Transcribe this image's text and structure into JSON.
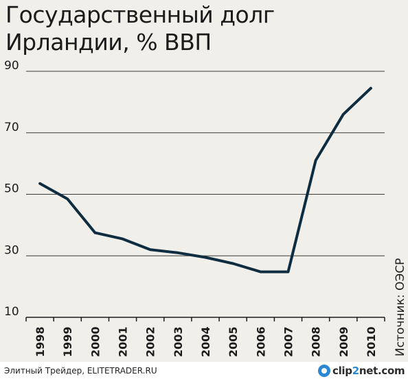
{
  "chart_data": {
    "type": "line",
    "title_lines": [
      "Государственный долг",
      "Ирландии, % ВВП"
    ],
    "x": [
      "1998",
      "1999",
      "2000",
      "2001",
      "2002",
      "2003",
      "2004",
      "2005",
      "2006",
      "2007",
      "2008",
      "2009",
      "2010"
    ],
    "series": [
      {
        "values": [
          53.5,
          48.5,
          37.5,
          35.5,
          32.0,
          31.0,
          29.5,
          27.5,
          24.8,
          24.8,
          61.0,
          76.0,
          84.5
        ]
      }
    ],
    "ylim": [
      10,
      90
    ],
    "yticks": [
      90,
      70,
      50,
      30,
      10
    ],
    "grid": true,
    "source": "Источник: ОЭСР",
    "line_color": "#0f2d40"
  },
  "footer": {
    "credit": "Элитный Трейдер, ELITETRADER.RU",
    "logo_left": "clip",
    "logo_num": "2",
    "logo_right": "net.com"
  }
}
